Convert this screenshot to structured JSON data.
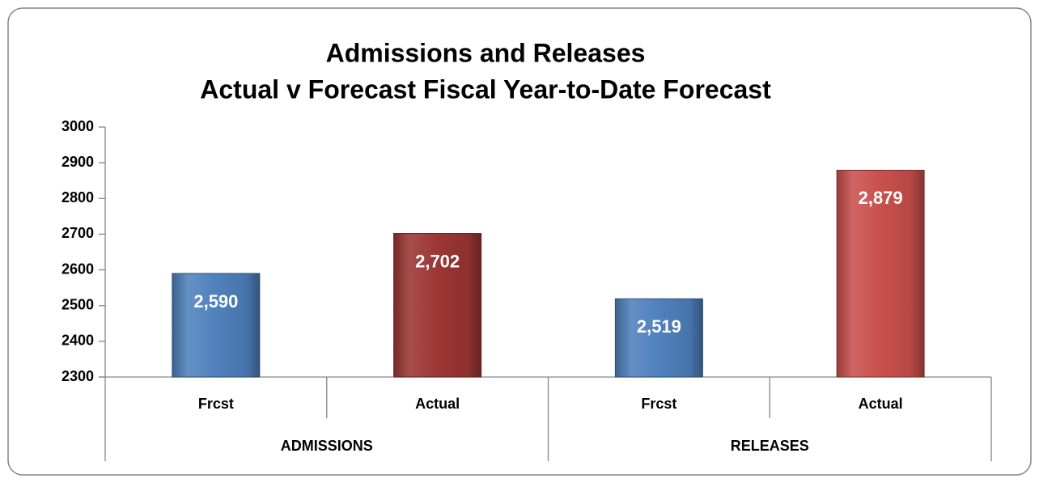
{
  "chart_data": {
    "type": "bar",
    "title": "Admissions and Releases",
    "subtitle": "Actual v Forecast Fiscal Year-to-Date Forecast",
    "categories": [
      "Frcst",
      "Actual",
      "Frcst",
      "Actual"
    ],
    "groups": [
      "ADMISSIONS",
      "RELEASES"
    ],
    "values": [
      2590,
      2702,
      2519,
      2879
    ],
    "value_labels": [
      "2,590",
      "2,702",
      "2,519",
      "2,879"
    ],
    "colors": [
      "#4f81bd",
      "#9b3634",
      "#4f81bd",
      "#c9504d"
    ],
    "ylim": [
      2300,
      3000
    ],
    "yticks": [
      2300,
      2400,
      2500,
      2600,
      2700,
      2800,
      2900,
      3000
    ],
    "grid": false
  }
}
